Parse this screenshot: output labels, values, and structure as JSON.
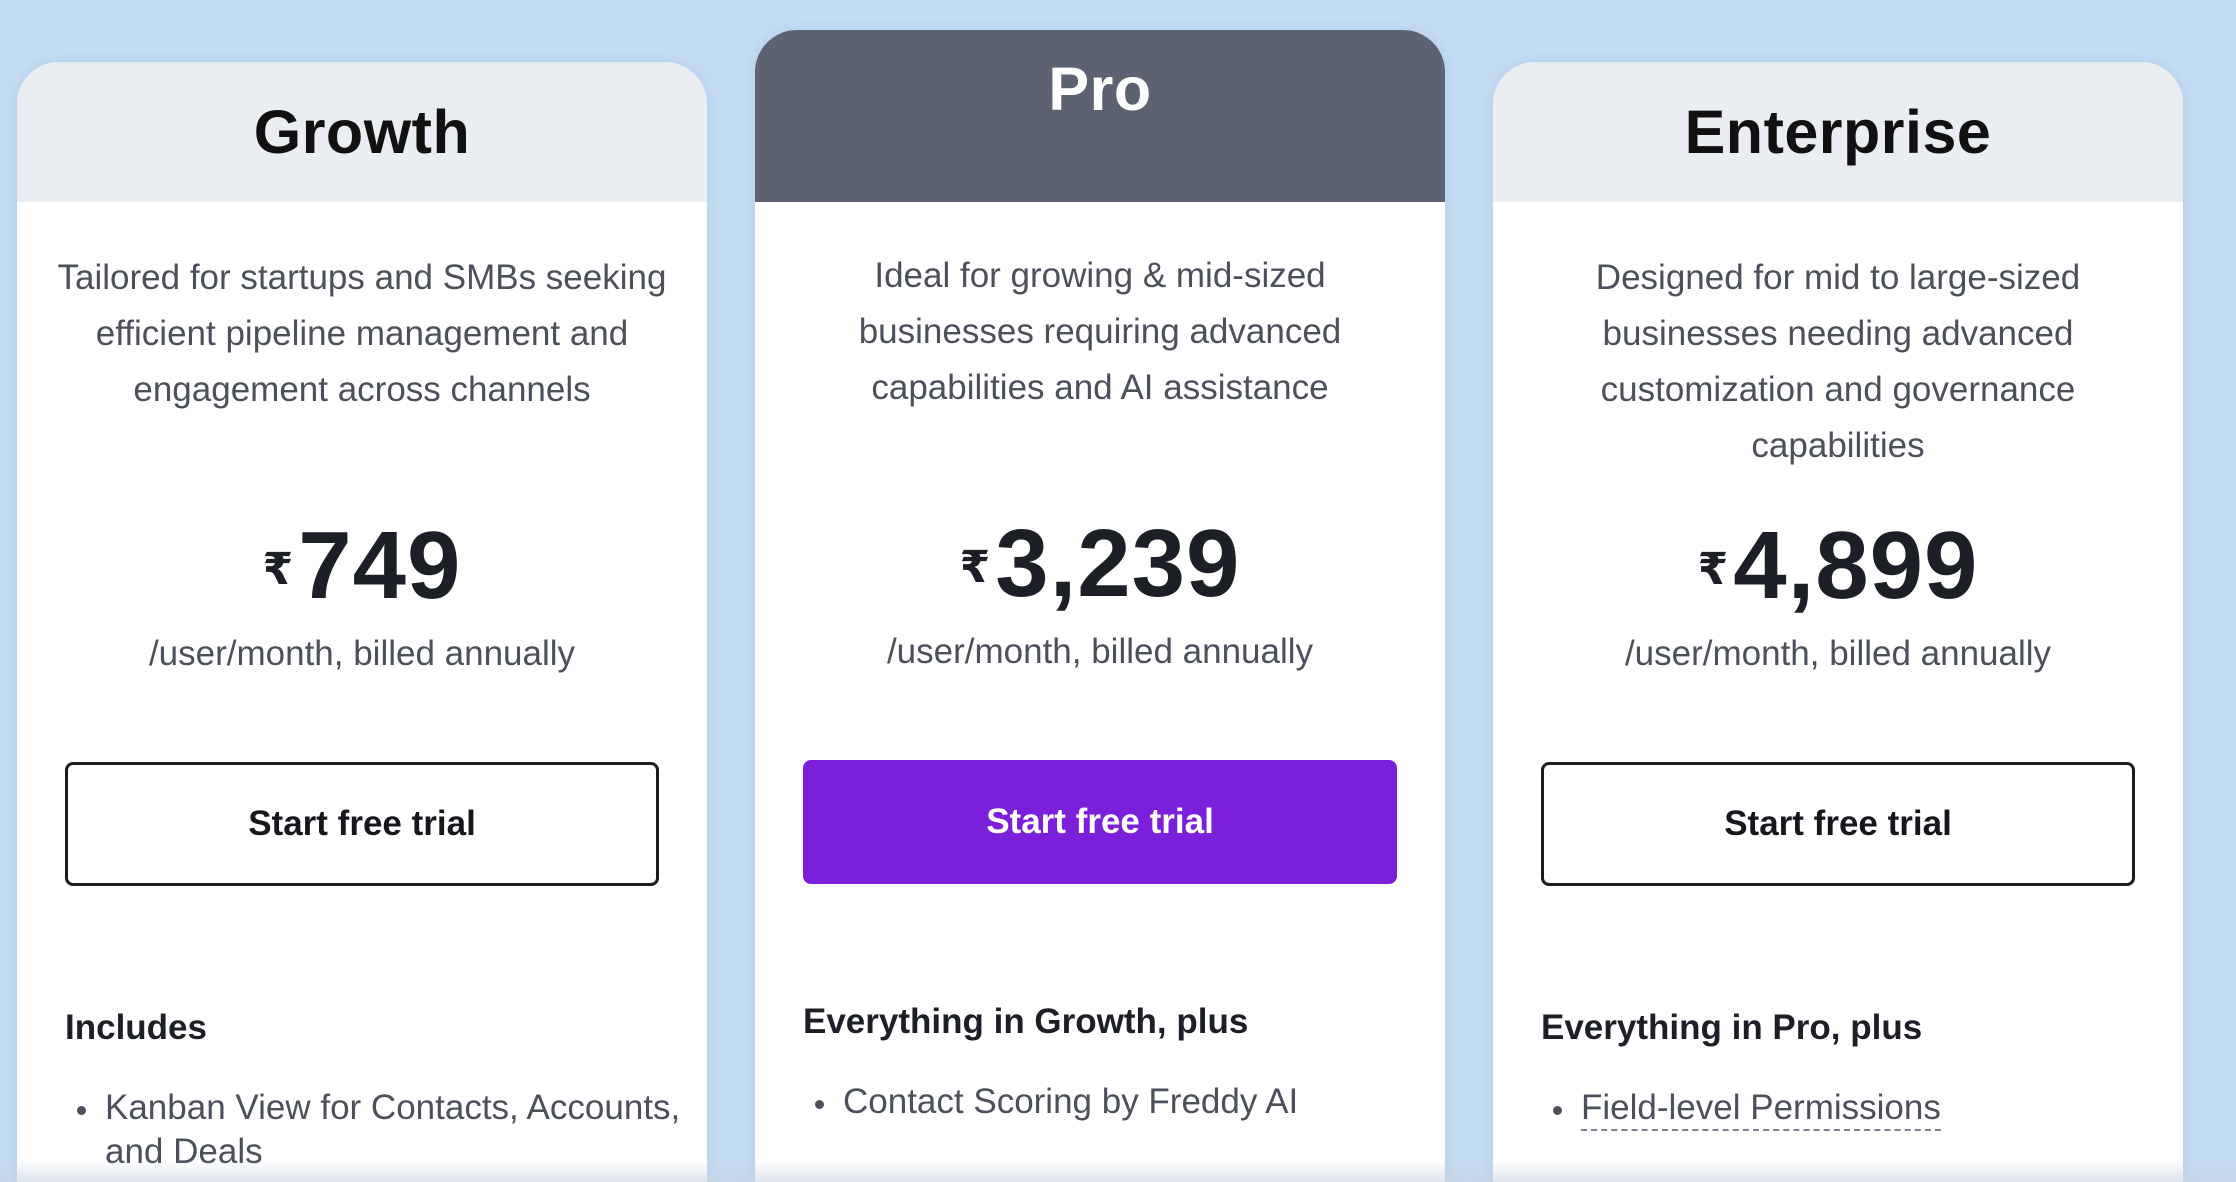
{
  "plans": [
    {
      "name": "Growth",
      "description": "Tailored for startups and SMBs seeking efficient pipeline management and engagement across channels",
      "currency": "₹",
      "price": "749",
      "billing": "/user/month, billed annually",
      "cta_label": "Start free trial",
      "features_heading": "Includes",
      "features": [
        "Kanban View for Contacts, Accounts, and Deals"
      ]
    },
    {
      "name": "Pro",
      "description": "Ideal for growing & mid-sized businesses requiring advanced capabilities and AI assistance",
      "currency": "₹",
      "price": "3,239",
      "billing": "/user/month, billed annually",
      "cta_label": "Start free trial",
      "features_heading": "Everything in Growth, plus",
      "features": [
        "Contact Scoring by Freddy AI"
      ]
    },
    {
      "name": "Enterprise",
      "description": "Designed for mid to large-sized businesses needing advanced customization and governance capabilities",
      "currency": "₹",
      "price": "4,899",
      "billing": "/user/month, billed annually",
      "cta_label": "Start free trial",
      "features_heading": "Everything in Pro, plus",
      "features": [
        "Field-level Permissions"
      ]
    }
  ],
  "colors": {
    "background": "#c5ddf4",
    "pro_header": "#5d6273",
    "pro_cta": "#7b1fdb",
    "card_header": "#eaeef2"
  }
}
